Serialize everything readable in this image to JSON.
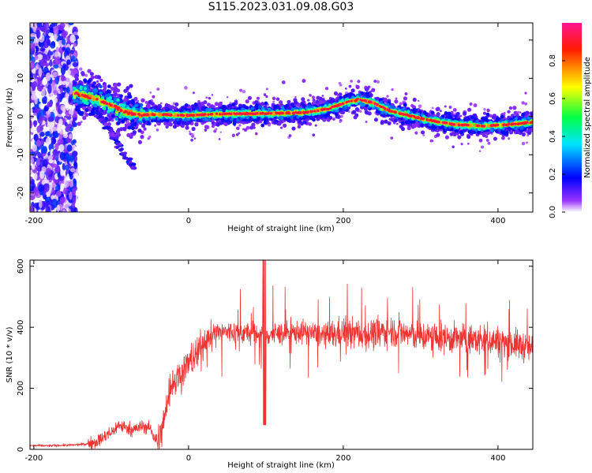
{
  "figure": {
    "title": "S115.2023.031.09.08.G03"
  },
  "chart_data": [
    {
      "type": "heatmap",
      "xlabel": "Height of straight line (km)",
      "ylabel": "Frequency (Hz)",
      "xlim": [
        -205,
        445
      ],
      "ylim": [
        -25,
        24.5
      ],
      "xticks": [
        -200,
        0,
        200,
        400
      ],
      "yticks": [
        20,
        10,
        0,
        -10,
        -20
      ],
      "colorbar": {
        "label": "Normalized spectral amplitude",
        "range": [
          0,
          1
        ],
        "ticks": [
          0.0,
          0.2,
          0.4,
          0.6,
          0.8
        ],
        "colors": [
          "#ffffff",
          "#8800ff",
          "#0000ff",
          "#00ffff",
          "#00ff00",
          "#ffff00",
          "#ff0000",
          "#ff00aa"
        ]
      },
      "signal_track": {
        "x": [
          -145,
          -120,
          -100,
          -80,
          -60,
          -45,
          -30,
          0,
          50,
          100,
          150,
          180,
          200,
          220,
          240,
          260,
          300,
          340,
          380,
          420,
          445
        ],
        "y": [
          6,
          4.5,
          3,
          1,
          0.5,
          0.5,
          0.5,
          0.3,
          0.7,
          0.8,
          1,
          2,
          3.5,
          4.5,
          3.5,
          1.5,
          -0.5,
          -2,
          -2.5,
          -2,
          -1.5
        ]
      },
      "noise_region_x": [
        -205,
        -145
      ],
      "grid": false
    },
    {
      "type": "line",
      "xlabel": "Height of straight line (km)",
      "ylabel": "SNR (10 * v/v)",
      "xlim": [
        -205,
        445
      ],
      "ylim": [
        0,
        620
      ],
      "xticks": [
        -200,
        0,
        200,
        400
      ],
      "yticks": [
        0,
        200,
        400,
        600
      ],
      "color": "#ee3333",
      "series": [
        {
          "x": [
            -205,
            -180,
            -150,
            -130,
            -115,
            -100,
            -90,
            -80,
            -70,
            -60,
            -50,
            -45,
            -40,
            -35,
            -30,
            -25,
            -20,
            -10,
            0,
            10,
            20,
            30,
            50,
            80,
            100,
            120,
            150,
            180,
            200,
            230,
            260,
            300,
            330,
            360,
            400,
            430,
            445
          ],
          "y": [
            12,
            12,
            14,
            18,
            30,
            55,
            80,
            70,
            65,
            75,
            70,
            45,
            20,
            60,
            120,
            190,
            220,
            250,
            280,
            310,
            350,
            380,
            385,
            380,
            375,
            380,
            385,
            370,
            385,
            375,
            390,
            370,
            365,
            360,
            355,
            340,
            330
          ]
        }
      ],
      "grid": false
    }
  ]
}
